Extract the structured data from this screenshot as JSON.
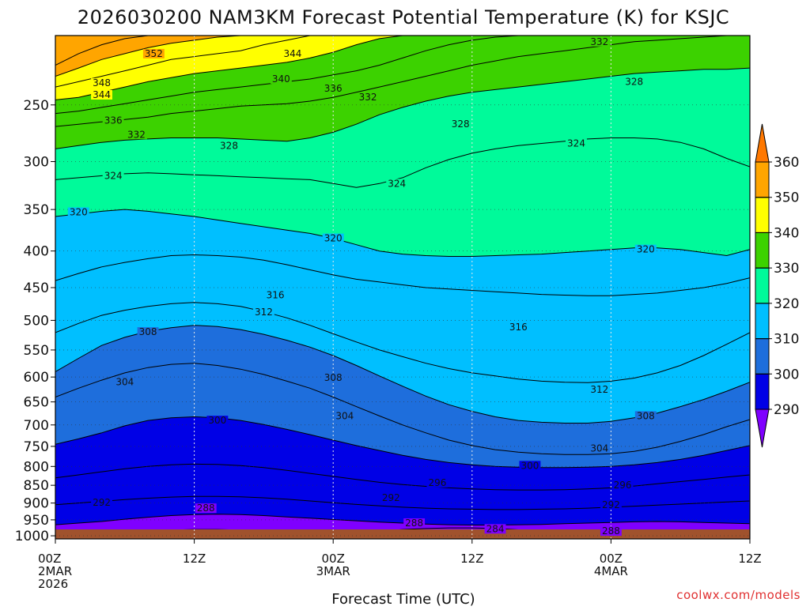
{
  "chart_data": {
    "type": "contour-cross-section",
    "title": "2026030200 NAM3KM Forecast Potential Temperature (K) for KSJC",
    "xlabel": "Forecast Time (UTC)",
    "ylabel": "",
    "credit": "coolwx.com/models",
    "y_scale": "pressure (log)",
    "ylim": [
      1010,
      200
    ],
    "y_ticks": [
      250,
      300,
      350,
      400,
      450,
      500,
      550,
      600,
      650,
      700,
      750,
      800,
      850,
      900,
      950,
      1000
    ],
    "x_range_hours": [
      0,
      60
    ],
    "x_ticks": [
      {
        "hour": 0,
        "lines": [
          "00Z",
          "2MAR",
          "2026"
        ]
      },
      {
        "hour": 12,
        "lines": [
          "12Z"
        ]
      },
      {
        "hour": 24,
        "lines": [
          "00Z",
          "3MAR"
        ]
      },
      {
        "hour": 36,
        "lines": [
          "12Z"
        ]
      },
      {
        "hour": 48,
        "lines": [
          "00Z",
          "4MAR"
        ]
      },
      {
        "hour": 60,
        "lines": [
          "12Z"
        ]
      }
    ],
    "colorbar": {
      "levels": [
        290,
        300,
        310,
        320,
        330,
        340,
        350,
        360
      ],
      "colors": [
        "#7f00ff",
        "#0000e6",
        "#1e6edc",
        "#00bfff",
        "#00fa9a",
        "#3cd200",
        "#ffff00",
        "#ffa500",
        "#ff7800"
      ]
    },
    "contour_interval_k": 4,
    "isentropes": [
      {
        "k": 352,
        "pressures": [
          220,
          212,
          206,
          202,
          200,
          200,
          200,
          200,
          200,
          200,
          200,
          200,
          200,
          200,
          200,
          200,
          200,
          200,
          200,
          200,
          200,
          200,
          200,
          200,
          200,
          200,
          200,
          200,
          200,
          200,
          200
        ]
      },
      {
        "k": 348,
        "pressures": [
          228,
          222,
          216,
          212,
          208,
          205,
          203,
          201,
          200,
          200,
          200,
          200,
          200,
          200,
          200,
          200,
          200,
          200,
          200,
          200,
          200,
          200,
          200,
          200,
          200,
          200,
          200,
          200,
          200,
          200,
          200
        ]
      },
      {
        "k": 344,
        "pressures": [
          236,
          232,
          228,
          224,
          220,
          216,
          214,
          212,
          210,
          206,
          203,
          200,
          200,
          200,
          200,
          200,
          200,
          200,
          200,
          200,
          200,
          200,
          200,
          200,
          200,
          200,
          200,
          200,
          200,
          200,
          200
        ]
      },
      {
        "k": 340,
        "pressures": [
          246,
          244,
          240,
          236,
          232,
          229,
          226,
          224,
          222,
          220,
          218,
          215,
          211,
          206,
          202,
          200,
          200,
          200,
          200,
          200,
          200,
          200,
          200,
          200,
          200,
          200,
          200,
          200,
          200,
          200,
          200
        ]
      },
      {
        "k": 336,
        "pressures": [
          257,
          255,
          252,
          249,
          246,
          243,
          240,
          238,
          236,
          234,
          232,
          230,
          227,
          224,
          220,
          215,
          210,
          206,
          203,
          201,
          200,
          200,
          200,
          200,
          200,
          200,
          200,
          200,
          200,
          200,
          200
        ]
      },
      {
        "k": 332,
        "pressures": [
          268,
          266,
          264,
          262,
          260,
          257,
          255,
          253,
          251,
          250,
          249,
          247,
          244,
          240,
          236,
          232,
          228,
          224,
          220,
          217,
          214,
          212,
          210,
          208,
          206,
          204,
          203,
          202,
          201,
          200,
          200
        ]
      },
      {
        "k": 328,
        "pressures": [
          288,
          285,
          282,
          280,
          279,
          278,
          278,
          278,
          279,
          280,
          281,
          278,
          273,
          266,
          258,
          252,
          247,
          243,
          240,
          238,
          236,
          234,
          232,
          230,
          228,
          226,
          225,
          224,
          223,
          223,
          222
        ]
      },
      {
        "k": 324,
        "pressures": [
          318,
          316,
          314,
          312,
          311,
          312,
          313,
          314,
          315,
          316,
          317,
          318,
          322,
          326,
          322,
          316,
          306,
          298,
          292,
          288,
          285,
          283,
          281,
          279,
          278,
          278,
          279,
          282,
          288,
          297,
          305
        ]
      },
      {
        "k": 320,
        "pressures": [
          358,
          355,
          352,
          350,
          352,
          355,
          358,
          362,
          366,
          370,
          374,
          378,
          384,
          392,
          400,
          404,
          406,
          407,
          407,
          406,
          405,
          404,
          402,
          400,
          398,
          396,
          396,
          398,
          402,
          406,
          398
        ]
      },
      {
        "k": 316,
        "pressures": [
          440,
          430,
          421,
          415,
          410,
          406,
          405,
          406,
          408,
          412,
          418,
          425,
          432,
          438,
          442,
          446,
          450,
          452,
          454,
          456,
          458,
          460,
          461,
          462,
          462,
          460,
          458,
          454,
          450,
          444,
          436
        ]
      },
      {
        "k": 312,
        "pressures": [
          520,
          505,
          492,
          484,
          478,
          474,
          472,
          474,
          478,
          486,
          496,
          508,
          522,
          536,
          550,
          562,
          574,
          584,
          592,
          598,
          604,
          608,
          610,
          611,
          608,
          602,
          592,
          578,
          560,
          540,
          520
        ]
      },
      {
        "k": 308,
        "pressures": [
          590,
          565,
          542,
          528,
          518,
          512,
          508,
          510,
          515,
          523,
          533,
          545,
          560,
          578,
          598,
          618,
          638,
          656,
          670,
          682,
          690,
          694,
          696,
          696,
          692,
          684,
          674,
          660,
          645,
          628,
          610
        ]
      },
      {
        "k": 304,
        "pressures": [
          640,
          622,
          606,
          592,
          582,
          576,
          574,
          578,
          585,
          595,
          608,
          622,
          640,
          660,
          680,
          700,
          718,
          735,
          748,
          758,
          764,
          768,
          770,
          770,
          768,
          762,
          752,
          738,
          722,
          704,
          688
        ]
      },
      {
        "k": 300,
        "pressures": [
          745,
          732,
          718,
          702,
          690,
          684,
          682,
          684,
          690,
          699,
          710,
          722,
          735,
          748,
          760,
          772,
          782,
          790,
          796,
          800,
          802,
          803,
          803,
          802,
          800,
          796,
          790,
          782,
          772,
          760,
          748
        ]
      },
      {
        "k": 296,
        "pressures": [
          830,
          822,
          814,
          806,
          800,
          796,
          794,
          795,
          798,
          803,
          810,
          818,
          826,
          834,
          842,
          848,
          853,
          857,
          860,
          862,
          863,
          863,
          862,
          860,
          857,
          852,
          846,
          840,
          834,
          828,
          822
        ]
      },
      {
        "k": 292,
        "pressures": [
          905,
          900,
          895,
          890,
          886,
          883,
          881,
          881,
          882,
          885,
          889,
          894,
          899,
          904,
          908,
          912,
          915,
          917,
          918,
          919,
          919,
          918,
          917,
          915,
          912,
          909,
          906,
          903,
          900,
          897,
          894
        ]
      },
      {
        "k": 288,
        "pressures": [
          965,
          960,
          955,
          948,
          942,
          937,
          934,
          933,
          934,
          937,
          941,
          945,
          949,
          953,
          957,
          960,
          963,
          965,
          966,
          966,
          965,
          964,
          962,
          960,
          958,
          956,
          955,
          956,
          958,
          960,
          962
        ]
      },
      {
        "k": 284,
        "pressures": [
          1010,
          1005,
          999,
          992,
          986,
          982,
          980,
          980,
          982,
          986,
          991,
          996,
          1000,
          994,
          986,
          980,
          977,
          975,
          975,
          977,
          981,
          986,
          992,
          998,
          1004,
          1010,
          1010,
          1010,
          1010,
          1010,
          1010
        ]
      }
    ],
    "contour_labels": [
      {
        "text": "352",
        "hour": 8.5,
        "p": 212
      },
      {
        "text": "348",
        "hour": 4.0,
        "p": 233
      },
      {
        "text": "344",
        "hour": 4.0,
        "p": 242
      },
      {
        "text": "344",
        "hour": 20.5,
        "p": 212
      },
      {
        "text": "340",
        "hour": 19.5,
        "p": 230
      },
      {
        "text": "336",
        "hour": 5.0,
        "p": 263
      },
      {
        "text": "336",
        "hour": 24.0,
        "p": 237
      },
      {
        "text": "332",
        "hour": 7.0,
        "p": 275
      },
      {
        "text": "332",
        "hour": 27.0,
        "p": 244
      },
      {
        "text": "332",
        "hour": 47.0,
        "p": 204
      },
      {
        "text": "328",
        "hour": 15.0,
        "p": 285
      },
      {
        "text": "328",
        "hour": 35.0,
        "p": 266
      },
      {
        "text": "328",
        "hour": 50.0,
        "p": 232
      },
      {
        "text": "324",
        "hour": 5.0,
        "p": 314
      },
      {
        "text": "324",
        "hour": 29.5,
        "p": 322
      },
      {
        "text": "324",
        "hour": 45.0,
        "p": 283
      },
      {
        "text": "320",
        "hour": 2.0,
        "p": 353
      },
      {
        "text": "320",
        "hour": 24.0,
        "p": 384
      },
      {
        "text": "320",
        "hour": 51.0,
        "p": 398
      },
      {
        "text": "316",
        "hour": 19.0,
        "p": 461
      },
      {
        "text": "316",
        "hour": 40.0,
        "p": 511
      },
      {
        "text": "312",
        "hour": 18.0,
        "p": 487
      },
      {
        "text": "312",
        "hour": 47.0,
        "p": 625
      },
      {
        "text": "308",
        "hour": 8.0,
        "p": 519
      },
      {
        "text": "308",
        "hour": 24.0,
        "p": 601
      },
      {
        "text": "308",
        "hour": 51.0,
        "p": 680
      },
      {
        "text": "304",
        "hour": 6.0,
        "p": 610
      },
      {
        "text": "304",
        "hour": 25.0,
        "p": 680
      },
      {
        "text": "304",
        "hour": 47.0,
        "p": 755
      },
      {
        "text": "300",
        "hour": 14.0,
        "p": 690
      },
      {
        "text": "300",
        "hour": 41.0,
        "p": 798
      },
      {
        "text": "296",
        "hour": 33.0,
        "p": 843
      },
      {
        "text": "296",
        "hour": 49.0,
        "p": 850
      },
      {
        "text": "292",
        "hour": 4.0,
        "p": 898
      },
      {
        "text": "292",
        "hour": 29.0,
        "p": 885
      },
      {
        "text": "292",
        "hour": 48.0,
        "p": 905
      },
      {
        "text": "288",
        "hour": 13.0,
        "p": 915
      },
      {
        "text": "288",
        "hour": 31.0,
        "p": 960
      },
      {
        "text": "288",
        "hour": 48.0,
        "p": 985
      },
      {
        "text": "284",
        "hour": 38.0,
        "p": 978
      }
    ]
  }
}
